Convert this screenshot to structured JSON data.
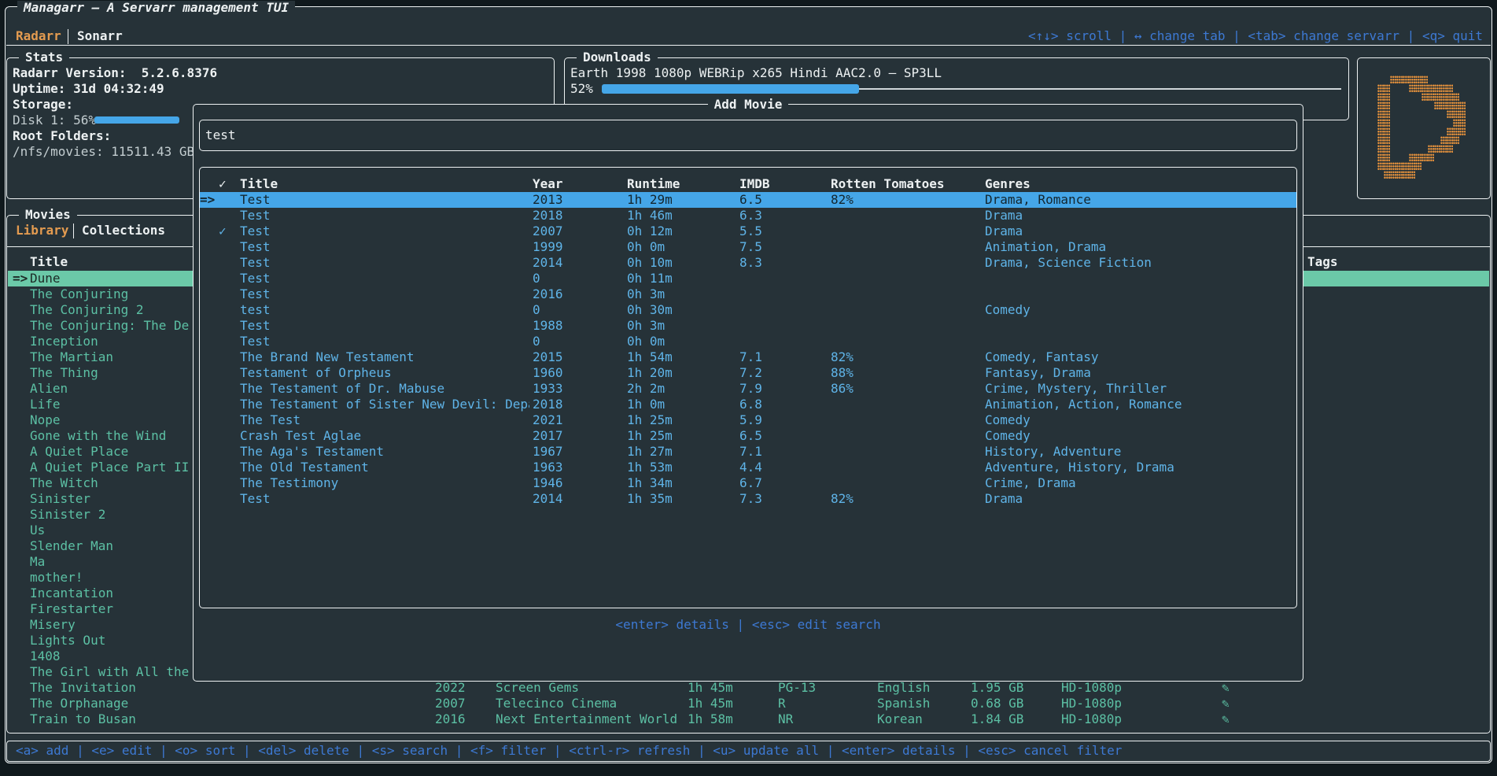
{
  "colors": {
    "background": "#263238",
    "border_white": "#eef2f3",
    "title_purple": "#b96ad0",
    "accent_orange": "#e39b50",
    "hint_blue": "#3d79d3",
    "row_light_blue": "#5fb4e8",
    "selection_blue": "#45a6e8",
    "list_teal": "#5cc0a4",
    "selection_green": "#6bc9a8",
    "gauge_blue": "#45a6e8",
    "logo_orange": "#e8933c"
  },
  "app": {
    "title": "Managarr – A Servarr management TUI",
    "tabs": [
      {
        "label": "Radarr"
      },
      {
        "label": "Sonarr"
      }
    ],
    "active_tab": "Radarr",
    "top_hints": "<↑↓> scroll | ↔ change tab | <tab> change servarr | <q> quit",
    "footer_hints": "<a> add | <e> edit | <o> sort | <del> delete | <s> search | <f> filter | <ctrl-r> refresh | <u> update all | <enter> details | <esc> cancel filter"
  },
  "stats": {
    "title": "Stats",
    "version": "Radarr Version:  5.2.6.8376",
    "uptime": "Uptime: 31d 04:32:49",
    "storage_label": "Storage:",
    "disk_label": "Disk 1: 56%",
    "disk_percent": 56,
    "root_folders_label": "Root Folders:",
    "root_folder": "/nfs/movies: 11511.43 GB"
  },
  "downloads": {
    "title": "Downloads",
    "item": "Earth 1998 1080p WEBRip x265 Hindi AAC2.0 – SP3LL",
    "percent_label": "52%",
    "percent": 52
  },
  "library": {
    "title": "Movies",
    "tabs": [
      {
        "label": "Library"
      },
      {
        "label": "Collections"
      }
    ],
    "active_tab": "Library",
    "column_title": "Title",
    "tags_column": "Tags",
    "selection_arrow": "=>",
    "selected_index": 0,
    "items": [
      "Dune",
      "The Conjuring",
      "The Conjuring 2",
      "The Conjuring: The De",
      "Inception",
      "The Martian",
      "The Thing",
      "Alien",
      "Life",
      "Nope",
      "Gone with the Wind",
      "A Quiet Place",
      "A Quiet Place Part II",
      "The Witch",
      "Sinister",
      "Sinister 2",
      "Us",
      "Slender Man",
      "Ma",
      "mother!",
      "Incantation",
      "Firestarter",
      "Misery",
      "Lights Out",
      "1408",
      "The Girl with All the",
      "The Invitation",
      "The Orphanage",
      "Train to Busan"
    ],
    "detail_rows": [
      {
        "row_index": 26,
        "year": "2022",
        "studio": "Screen Gems",
        "runtime": "1h 45m",
        "certification": "PG-13",
        "language": "English",
        "size": "1.95 GB",
        "quality": "HD-1080p",
        "monitored_icon": "✎"
      },
      {
        "row_index": 27,
        "year": "2007",
        "studio": "Telecinco Cinema",
        "runtime": "1h 45m",
        "certification": "R",
        "language": "Spanish",
        "size": "0.68 GB",
        "quality": "HD-1080p",
        "monitored_icon": "✎"
      },
      {
        "row_index": 28,
        "year": "2016",
        "studio": "Next Entertainment World",
        "runtime": "1h 58m",
        "certification": "NR",
        "language": "Korean",
        "size": "1.84 GB",
        "quality": "HD-1080p",
        "monitored_icon": "✎"
      }
    ]
  },
  "add_movie": {
    "title": "Add Movie",
    "search_value": "test",
    "columns": {
      "check": "✓",
      "title": "Title",
      "year": "Year",
      "runtime": "Runtime",
      "imdb": "IMDB",
      "rotten_tomatoes": "Rotten Tomatoes",
      "genres": "Genres"
    },
    "selection_arrow": "=>",
    "selected_index": 0,
    "rows": [
      {
        "checked": "",
        "title": "Test",
        "year": "2013",
        "runtime": "1h 29m",
        "imdb": "6.5",
        "rotten_tomatoes": "82%",
        "genres": "Drama, Romance"
      },
      {
        "checked": "",
        "title": "Test",
        "year": "2018",
        "runtime": "1h 46m",
        "imdb": "6.3",
        "rotten_tomatoes": "",
        "genres": "Drama"
      },
      {
        "checked": "✓",
        "title": "Test",
        "year": "2007",
        "runtime": "0h 12m",
        "imdb": "5.5",
        "rotten_tomatoes": "",
        "genres": "Drama"
      },
      {
        "checked": "",
        "title": "Test",
        "year": "1999",
        "runtime": "0h 0m",
        "imdb": "7.5",
        "rotten_tomatoes": "",
        "genres": "Animation, Drama"
      },
      {
        "checked": "",
        "title": "Test",
        "year": "2014",
        "runtime": "0h 10m",
        "imdb": "8.3",
        "rotten_tomatoes": "",
        "genres": "Drama, Science Fiction"
      },
      {
        "checked": "",
        "title": "Test",
        "year": "0",
        "runtime": "0h 11m",
        "imdb": "",
        "rotten_tomatoes": "",
        "genres": ""
      },
      {
        "checked": "",
        "title": "Test",
        "year": "2016",
        "runtime": "0h 3m",
        "imdb": "",
        "rotten_tomatoes": "",
        "genres": ""
      },
      {
        "checked": "",
        "title": "test",
        "year": "0",
        "runtime": "0h 30m",
        "imdb": "",
        "rotten_tomatoes": "",
        "genres": "Comedy"
      },
      {
        "checked": "",
        "title": "Test",
        "year": "1988",
        "runtime": "0h 3m",
        "imdb": "",
        "rotten_tomatoes": "",
        "genres": ""
      },
      {
        "checked": "",
        "title": "Test",
        "year": "0",
        "runtime": "0h 0m",
        "imdb": "",
        "rotten_tomatoes": "",
        "genres": ""
      },
      {
        "checked": "",
        "title": "The Brand New Testament",
        "year": "2015",
        "runtime": "1h 54m",
        "imdb": "7.1",
        "rotten_tomatoes": "82%",
        "genres": "Comedy, Fantasy"
      },
      {
        "checked": "",
        "title": "Testament of Orpheus",
        "year": "1960",
        "runtime": "1h 20m",
        "imdb": "7.2",
        "rotten_tomatoes": "88%",
        "genres": "Fantasy, Drama"
      },
      {
        "checked": "",
        "title": "The Testament of Dr. Mabuse",
        "year": "1933",
        "runtime": "2h 2m",
        "imdb": "7.9",
        "rotten_tomatoes": "86%",
        "genres": "Crime, Mystery, Thriller"
      },
      {
        "checked": "",
        "title": "The Testament of Sister New Devil: Depar",
        "year": "2018",
        "runtime": "1h 0m",
        "imdb": "6.8",
        "rotten_tomatoes": "",
        "genres": "Animation, Action, Romance"
      },
      {
        "checked": "",
        "title": "The Test",
        "year": "2021",
        "runtime": "1h 25m",
        "imdb": "5.9",
        "rotten_tomatoes": "",
        "genres": "Comedy"
      },
      {
        "checked": "",
        "title": "Crash Test Aglae",
        "year": "2017",
        "runtime": "1h 25m",
        "imdb": "6.5",
        "rotten_tomatoes": "",
        "genres": "Comedy"
      },
      {
        "checked": "",
        "title": "The Aga's Testament",
        "year": "1967",
        "runtime": "1h 27m",
        "imdb": "7.1",
        "rotten_tomatoes": "",
        "genres": "History, Adventure"
      },
      {
        "checked": "",
        "title": "The Old Testament",
        "year": "1963",
        "runtime": "1h 53m",
        "imdb": "4.4",
        "rotten_tomatoes": "",
        "genres": "Adventure, History, Drama"
      },
      {
        "checked": "",
        "title": "The Testimony",
        "year": "1946",
        "runtime": "1h 34m",
        "imdb": "6.7",
        "rotten_tomatoes": "",
        "genres": "Crime, Drama"
      },
      {
        "checked": "",
        "title": "Test",
        "year": "2014",
        "runtime": "1h 35m",
        "imdb": "7.3",
        "rotten_tomatoes": "82%",
        "genres": "Drama"
      }
    ],
    "help": "<enter> details | <esc> edit search"
  },
  "logo": {
    "name": "managarr-play-logo",
    "bitmap": [
      "...######........",
      ".##...#######....",
      ".##.....######...",
      ".##.......#####..",
      ".##.........###..",
      ".##..........##..",
      ".##.........###..",
      ".##........###...",
      ".##......####....",
      ".##...####.......",
      ".#######.........",
      "..#####.........."
    ]
  }
}
